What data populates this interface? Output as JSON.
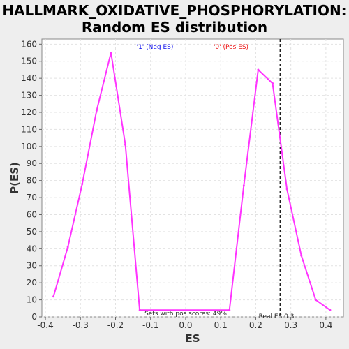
{
  "chart_data": {
    "type": "line",
    "title": "HALLMARK_OXIDATIVE_PHOSPHORYLATION:",
    "subtitle": "Random ES distribution",
    "xlabel": "ES",
    "ylabel": "P(ES)",
    "xlim": [
      -0.41,
      0.45
    ],
    "ylim": [
      0,
      163
    ],
    "grid": true,
    "x_ticks": [
      -0.4,
      -0.3,
      -0.2,
      -0.1,
      0.0,
      0.1,
      0.2,
      0.3,
      0.4
    ],
    "x_tick_labels": [
      "-0.4",
      "-0.3",
      "-0.2",
      "-0.1",
      "0.0",
      "0.1",
      "0.2",
      "0.3",
      "0.4"
    ],
    "y_ticks": [
      0,
      10,
      20,
      30,
      40,
      50,
      60,
      70,
      80,
      90,
      100,
      110,
      120,
      130,
      140,
      150,
      160
    ],
    "series": [
      {
        "color": "#ff33ff",
        "x": [
          -0.377,
          -0.336,
          -0.295,
          -0.254,
          -0.213,
          -0.172,
          -0.131,
          0.125,
          0.166,
          0.207,
          0.248,
          0.289,
          0.33,
          0.371,
          0.412
        ],
        "y": [
          12,
          41,
          78,
          121,
          155,
          101,
          4,
          4,
          77,
          145,
          137,
          75,
          36,
          10,
          4
        ]
      }
    ],
    "legend": [
      {
        "label": "'1' (Neg ES)",
        "color": "#1010ee"
      },
      {
        "label": "'0' (Pos ES)",
        "color": "#ee1010"
      }
    ],
    "annotations": {
      "pos_scores_text": "Sets with pos scores: 49%",
      "real_es_text": "Real ES 0.3",
      "real_es_value": 0.27
    }
  }
}
